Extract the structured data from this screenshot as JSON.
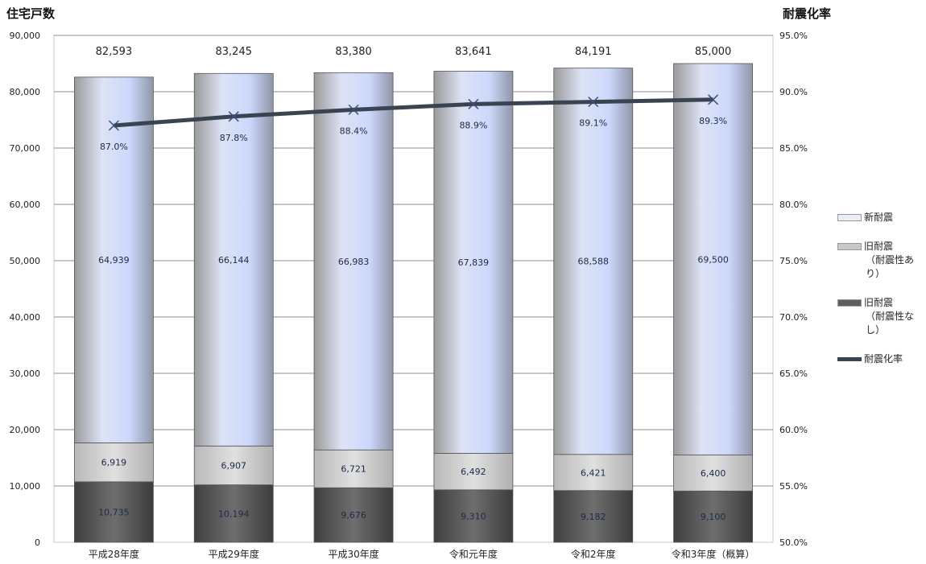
{
  "chart_data": {
    "type": "bar",
    "stacked": true,
    "y_axis_title": "住宅戸数",
    "y2_axis_title": "耐震化率",
    "categories": [
      "平成28年度",
      "平成29年度",
      "平成30年度",
      "令和元年度",
      "令和2年度",
      "令和3年度（概算）"
    ],
    "totals": [
      "82,593",
      "83,245",
      "83,380",
      "83,641",
      "84,191",
      "85,000"
    ],
    "series": [
      {
        "name": "旧耐震",
        "name_sub": "（耐震性なし）",
        "color": "#5e5e5e",
        "values": [
          10735,
          10194,
          9676,
          9310,
          9182,
          9100
        ],
        "labels": [
          "10,735",
          "10,194",
          "9,676",
          "9,310",
          "9,182",
          "9,100"
        ]
      },
      {
        "name": "旧耐震",
        "name_sub": "（耐震性あり）",
        "color": "#c8c8c8",
        "values": [
          6919,
          6907,
          6721,
          6492,
          6421,
          6400
        ],
        "labels": [
          "6,919",
          "6,907",
          "6,721",
          "6,492",
          "6,421",
          "6,400"
        ]
      },
      {
        "name": "新耐震",
        "name_sub": "",
        "color": "#c9d4f2",
        "values": [
          64939,
          66144,
          66983,
          67839,
          68588,
          69500
        ],
        "labels": [
          "64,939",
          "66,144",
          "66,983",
          "67,839",
          "68,588",
          "69,500"
        ]
      }
    ],
    "line_series": {
      "name": "耐震化率",
      "color": "#3a4450",
      "values": [
        87.0,
        87.8,
        88.4,
        88.9,
        89.1,
        89.3
      ],
      "labels": [
        "87.0%",
        "87.8%",
        "88.4%",
        "88.9%",
        "89.1%",
        "89.3%"
      ]
    },
    "y_ticks": [
      "0",
      "10,000",
      "20,000",
      "30,000",
      "40,000",
      "50,000",
      "60,000",
      "70,000",
      "80,000",
      "90,000"
    ],
    "y_tick_values": [
      0,
      10000,
      20000,
      30000,
      40000,
      50000,
      60000,
      70000,
      80000,
      90000
    ],
    "y2_ticks": [
      "50.0%",
      "55.0%",
      "60.0%",
      "65.0%",
      "70.0%",
      "75.0%",
      "80.0%",
      "85.0%",
      "90.0%",
      "95.0%"
    ],
    "y2_tick_values": [
      50,
      55,
      60,
      65,
      70,
      75,
      80,
      85,
      90,
      95
    ],
    "ylim": [
      0,
      90000
    ],
    "y2lim": [
      50,
      95
    ],
    "grid": true,
    "legend_position": "right"
  }
}
